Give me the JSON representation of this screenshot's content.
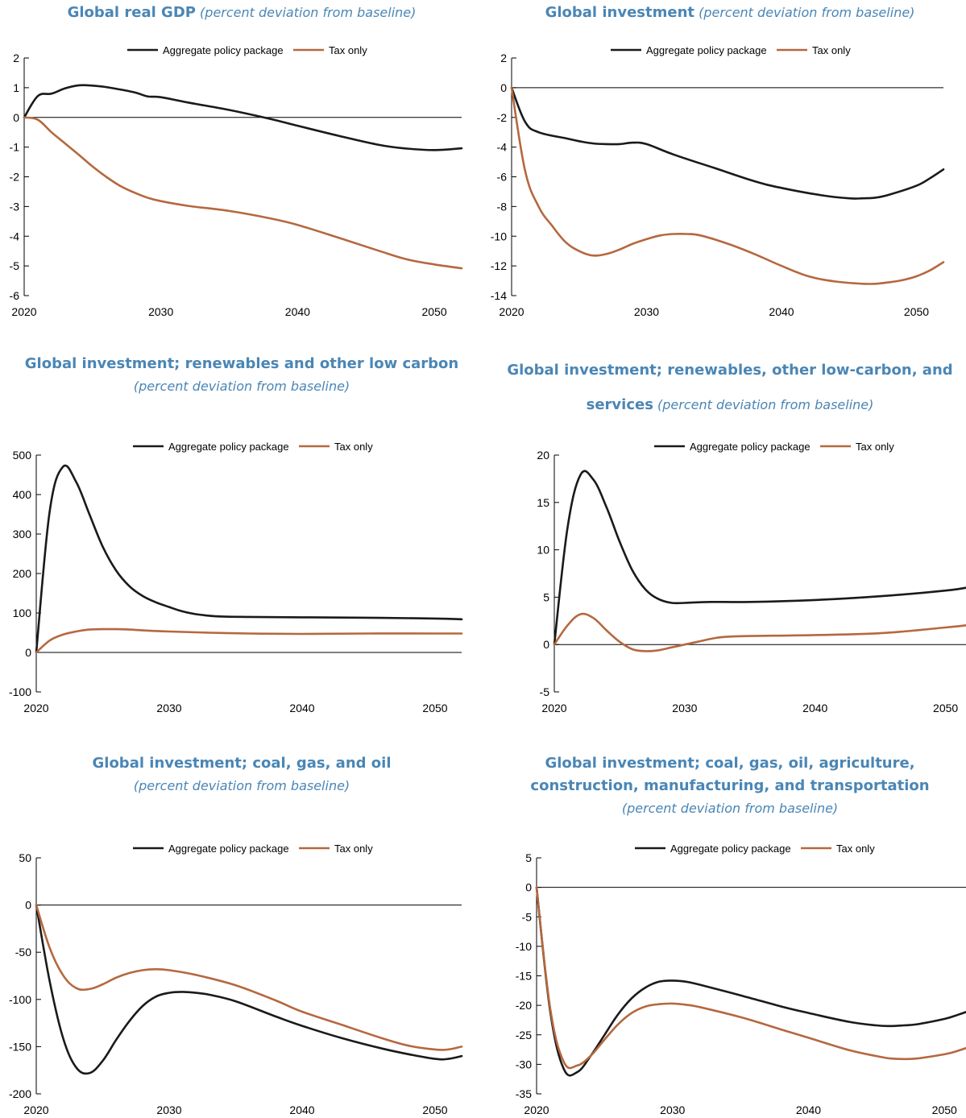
{
  "colors": {
    "title": "#4a86b5",
    "aggregate": "#1a1a1a",
    "tax": "#b5683f",
    "axis": "#000000"
  },
  "chart_data": [
    {
      "type": "line",
      "title": "Global real GDP",
      "subtitle": "(percent deviation from baseline)",
      "ylim": [
        -6,
        2
      ],
      "yticks": [
        2,
        1,
        0,
        -1,
        -2,
        -3,
        -4,
        -5,
        -6
      ],
      "xlim": [
        2020,
        2052
      ],
      "xticks": [
        2020,
        2030,
        2040,
        2050
      ],
      "legend": "top-center",
      "series": [
        {
          "name": "Aggregate policy package",
          "x": [
            2020,
            2021,
            2022,
            2023,
            2024,
            2025,
            2026,
            2028,
            2029,
            2030,
            2032,
            2035,
            2038,
            2040,
            2043,
            2046,
            2048,
            2050,
            2052
          ],
          "values": [
            0,
            0.72,
            0.8,
            0.98,
            1.08,
            1.07,
            1.02,
            0.85,
            0.71,
            0.68,
            0.5,
            0.25,
            -0.05,
            -0.28,
            -0.62,
            -0.93,
            -1.05,
            -1.1,
            -1.04
          ]
        },
        {
          "name": "Tax only",
          "x": [
            2020,
            2021,
            2022,
            2023,
            2024,
            2025,
            2026,
            2027,
            2028,
            2029,
            2030,
            2032,
            2035,
            2038,
            2040,
            2043,
            2046,
            2048,
            2050,
            2052
          ],
          "values": [
            0,
            -0.08,
            -0.5,
            -0.88,
            -1.26,
            -1.65,
            -2.0,
            -2.3,
            -2.52,
            -2.7,
            -2.82,
            -2.98,
            -3.15,
            -3.4,
            -3.62,
            -4.05,
            -4.5,
            -4.78,
            -4.95,
            -5.08
          ]
        }
      ]
    },
    {
      "type": "line",
      "title": "Global investment",
      "subtitle": "(percent deviation from baseline)",
      "ylim": [
        -14,
        2
      ],
      "yticks": [
        2,
        0,
        -2,
        -4,
        -6,
        -8,
        -10,
        -12,
        -14
      ],
      "xlim": [
        2020,
        2052
      ],
      "xticks": [
        2020,
        2030,
        2040,
        2050
      ],
      "legend": "top-center",
      "series": [
        {
          "name": "Aggregate policy package",
          "x": [
            2020,
            2021,
            2022,
            2024,
            2025,
            2026,
            2027,
            2028,
            2029,
            2030,
            2032,
            2035,
            2038,
            2040,
            2043,
            2045,
            2046,
            2047,
            2048,
            2050,
            2051,
            2052
          ],
          "values": [
            0,
            -2.3,
            -3.0,
            -3.4,
            -3.6,
            -3.75,
            -3.8,
            -3.8,
            -3.7,
            -3.8,
            -4.5,
            -5.4,
            -6.3,
            -6.75,
            -7.25,
            -7.45,
            -7.45,
            -7.4,
            -7.2,
            -6.6,
            -6.1,
            -5.5
          ]
        },
        {
          "name": "Tax only",
          "x": [
            2020,
            2021,
            2022,
            2023,
            2024,
            2025,
            2026,
            2027,
            2028,
            2029,
            2030,
            2031,
            2032,
            2033,
            2034,
            2036,
            2038,
            2040,
            2042,
            2044,
            2046,
            2047,
            2048,
            2049,
            2050,
            2051,
            2052
          ],
          "values": [
            0,
            -5.6,
            -8.0,
            -9.3,
            -10.4,
            -11.0,
            -11.3,
            -11.2,
            -10.9,
            -10.5,
            -10.2,
            -9.95,
            -9.85,
            -9.85,
            -9.95,
            -10.5,
            -11.2,
            -12.0,
            -12.7,
            -13.05,
            -13.2,
            -13.2,
            -13.1,
            -12.95,
            -12.7,
            -12.3,
            -11.75
          ]
        }
      ]
    },
    {
      "type": "line",
      "title": "Global investment; renewables and other low carbon",
      "subtitle": "(percent deviation from baseline)",
      "ylim": [
        -100,
        500
      ],
      "yticks": [
        500,
        400,
        300,
        200,
        100,
        0,
        -100
      ],
      "xlim": [
        2020,
        2052
      ],
      "xticks": [
        2020,
        2030,
        2040,
        2050
      ],
      "legend": "top-center",
      "series": [
        {
          "name": "Aggregate policy package",
          "x": [
            2020,
            2021,
            2022,
            2023,
            2024,
            2025,
            2026,
            2027,
            2028,
            2029,
            2030,
            2031,
            2032,
            2033,
            2034,
            2036,
            2040,
            2045,
            2050,
            2052
          ],
          "values": [
            0,
            355,
            470,
            432,
            350,
            268,
            208,
            168,
            143,
            127,
            115,
            104,
            97,
            93,
            91,
            90,
            89,
            88,
            86,
            84
          ]
        },
        {
          "name": "Tax only",
          "x": [
            2020,
            2021,
            2022,
            2023,
            2024,
            2025,
            2026,
            2027,
            2028,
            2030,
            2033,
            2036,
            2040,
            2045,
            2050,
            2052
          ],
          "values": [
            0,
            30,
            45,
            53,
            58,
            59,
            59,
            58,
            56,
            53,
            50,
            48,
            47,
            48,
            48,
            48
          ]
        }
      ]
    },
    {
      "type": "line",
      "title": "Global investment; renewables, other low-carbon, and services",
      "subtitle": "(percent deviation from baseline)",
      "ylim": [
        -5,
        20
      ],
      "yticks": [
        20,
        15,
        10,
        5,
        0,
        -5
      ],
      "xlim": [
        2020,
        2052
      ],
      "xticks": [
        2020,
        2030,
        2040,
        2050
      ],
      "legend": "top-center",
      "series": [
        {
          "name": "Aggregate policy package",
          "x": [
            2020,
            2021,
            2022,
            2023,
            2024,
            2025,
            2026,
            2027,
            2028,
            2029,
            2030,
            2032,
            2035,
            2040,
            2045,
            2050,
            2052
          ],
          "values": [
            0,
            12.2,
            17.9,
            17.4,
            14.5,
            10.9,
            7.8,
            5.8,
            4.8,
            4.4,
            4.4,
            4.5,
            4.5,
            4.7,
            5.1,
            5.7,
            6.1
          ]
        },
        {
          "name": "Tax only",
          "x": [
            2020,
            2021,
            2022,
            2023,
            2024,
            2025,
            2026,
            2027,
            2028,
            2029,
            2030,
            2031,
            2032,
            2033,
            2035,
            2040,
            2045,
            2050,
            2052
          ],
          "values": [
            0,
            2.0,
            3.2,
            2.8,
            1.5,
            0.3,
            -0.5,
            -0.7,
            -0.6,
            -0.3,
            0.0,
            0.3,
            0.6,
            0.8,
            0.9,
            1.0,
            1.2,
            1.8,
            2.1
          ]
        }
      ]
    },
    {
      "type": "line",
      "title": "Global investment; coal, gas, and oil",
      "subtitle": "(percent deviation from baseline)",
      "ylim": [
        -200,
        50
      ],
      "yticks": [
        50,
        0,
        -50,
        -100,
        -150,
        -200
      ],
      "xlim": [
        2020,
        2052
      ],
      "xticks": [
        2020,
        2030,
        2040,
        2050
      ],
      "legend": "top-center",
      "series": [
        {
          "name": "Aggregate policy package",
          "x": [
            2020,
            2021,
            2022,
            2023,
            2024,
            2025,
            2026,
            2027,
            2028,
            2029,
            2030,
            2031,
            2032,
            2033,
            2035,
            2038,
            2040,
            2043,
            2046,
            2048,
            2050,
            2051,
            2052
          ],
          "values": [
            0,
            -80,
            -140,
            -172,
            -178,
            -165,
            -143,
            -123,
            -107,
            -97,
            -93,
            -92,
            -93,
            -95,
            -102,
            -118,
            -128,
            -141,
            -152,
            -158,
            -163,
            -163,
            -160
          ]
        },
        {
          "name": "Tax only",
          "x": [
            2020,
            2021,
            2022,
            2023,
            2024,
            2025,
            2026,
            2027,
            2028,
            2029,
            2030,
            2032,
            2035,
            2038,
            2040,
            2043,
            2046,
            2048,
            2050,
            2051,
            2052
          ],
          "values": [
            0,
            -45,
            -74,
            -88,
            -89,
            -84,
            -77,
            -72,
            -69,
            -68,
            -69,
            -74,
            -85,
            -101,
            -113,
            -127,
            -141,
            -149,
            -153,
            -153,
            -150
          ]
        }
      ]
    },
    {
      "type": "line",
      "title": "Global investment; coal, gas, oil, agriculture, construction, manufacturing, and transportation",
      "subtitle": "(percent deviation from baseline)",
      "ylim": [
        -35,
        5
      ],
      "yticks": [
        5,
        0,
        -5,
        -10,
        -15,
        -20,
        -25,
        -30,
        -35
      ],
      "xlim": [
        2020,
        2052
      ],
      "xticks": [
        2020,
        2030,
        2040,
        2050
      ],
      "legend": "top-center",
      "series": [
        {
          "name": "Aggregate policy package",
          "x": [
            2020,
            2021,
            2022,
            2023,
            2024,
            2025,
            2026,
            2027,
            2028,
            2029,
            2030,
            2031,
            2032,
            2035,
            2038,
            2040,
            2043,
            2045,
            2046,
            2047,
            2048,
            2050,
            2051,
            2052
          ],
          "values": [
            0,
            -21,
            -30.8,
            -31.3,
            -28.5,
            -25,
            -21.5,
            -18.8,
            -17,
            -16,
            -15.8,
            -16,
            -16.5,
            -18.3,
            -20.2,
            -21.3,
            -22.8,
            -23.4,
            -23.5,
            -23.4,
            -23.2,
            -22.3,
            -21.6,
            -20.8
          ]
        },
        {
          "name": "Tax only",
          "x": [
            2020,
            2021,
            2022,
            2023,
            2024,
            2025,
            2026,
            2027,
            2028,
            2029,
            2030,
            2031,
            2032,
            2035,
            2038,
            2040,
            2043,
            2045,
            2046,
            2047,
            2048,
            2050,
            2051,
            2052
          ],
          "values": [
            0,
            -20.5,
            -29.6,
            -30.2,
            -28.5,
            -25.8,
            -23.2,
            -21.3,
            -20.2,
            -19.8,
            -19.7,
            -19.9,
            -20.3,
            -22,
            -24.1,
            -25.5,
            -27.6,
            -28.6,
            -29,
            -29.1,
            -29,
            -28.3,
            -27.7,
            -26.9
          ]
        }
      ]
    }
  ]
}
